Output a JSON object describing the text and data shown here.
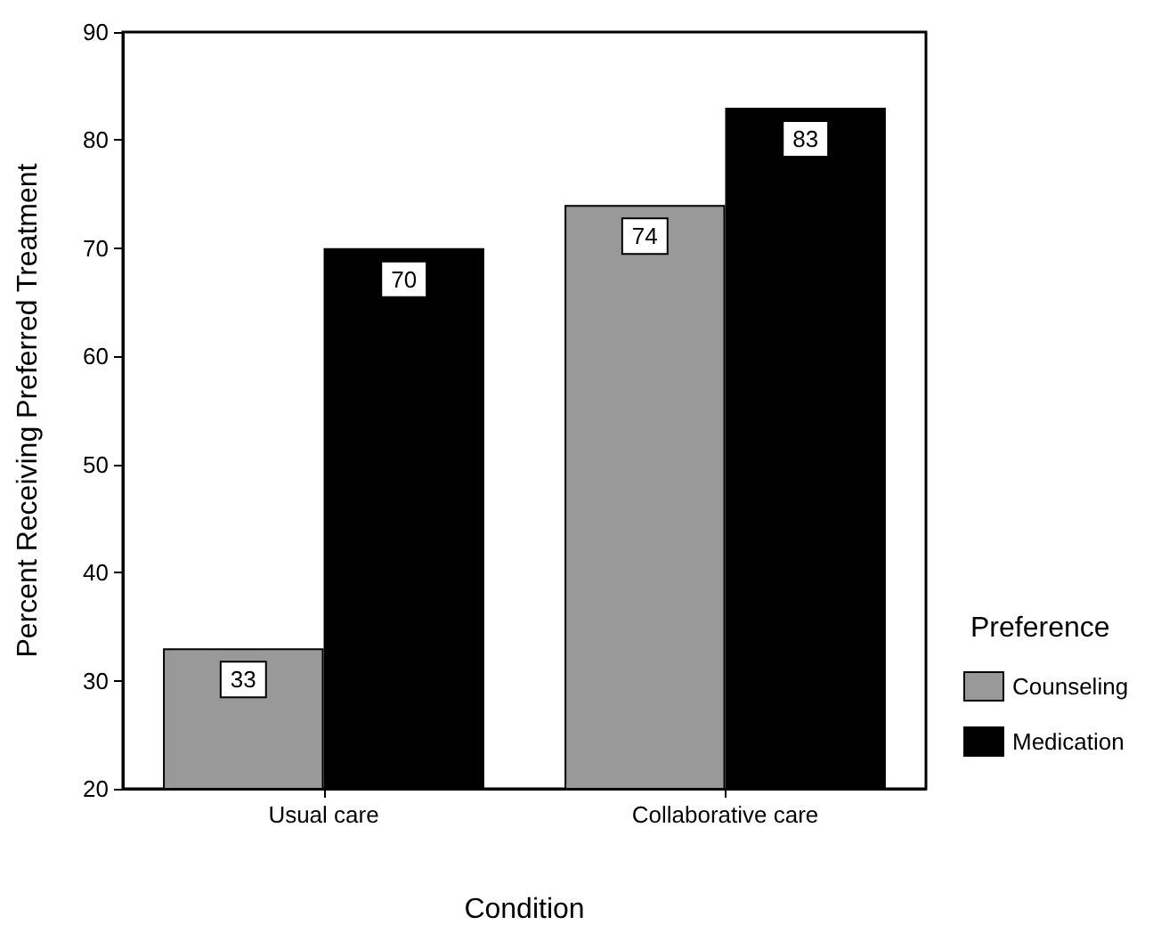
{
  "chart_data": {
    "type": "bar",
    "xlabel": "Condition",
    "ylabel": "Percent Receiving Preferred Treatment",
    "legend_title": "Preference",
    "categories": [
      "Usual care",
      "Collaborative care"
    ],
    "series": [
      {
        "name": "Counseling",
        "color": "#999999",
        "values": [
          33,
          74
        ]
      },
      {
        "name": "Medication",
        "color": "#000000",
        "values": [
          70,
          83
        ]
      }
    ],
    "ylim": [
      20,
      90
    ],
    "yticks": [
      20,
      30,
      40,
      50,
      60,
      70,
      80,
      90
    ],
    "data_labels": true,
    "legend": "right",
    "grid": false
  }
}
